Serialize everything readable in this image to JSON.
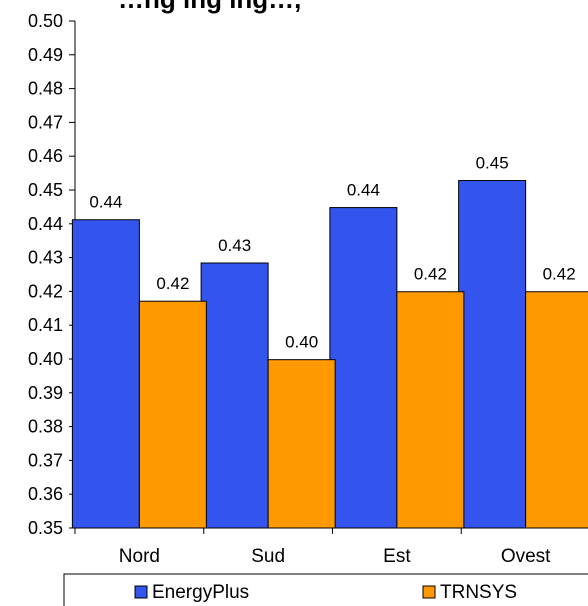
{
  "chart_data": {
    "type": "bar",
    "title": "…ng ing ing…, ",
    "categories": [
      "Nord",
      "Sud",
      "Est",
      "Ovest"
    ],
    "series": [
      {
        "name": "EnergyPlus",
        "color": "#3355ee",
        "values": [
          0.4412,
          0.4284,
          0.4448,
          0.4528
        ],
        "labels": [
          "0.44",
          "0.43",
          "0.44",
          "0.45"
        ]
      },
      {
        "name": "TRNSYS",
        "color": "#ff9900",
        "values": [
          0.4171,
          0.3998,
          0.4199,
          0.4199
        ],
        "labels": [
          "0.42",
          "0.40",
          "0.42",
          "0.42"
        ]
      }
    ],
    "ylim": [
      0.35,
      0.5
    ],
    "yticks": [
      "0.35",
      "0.36",
      "0.37",
      "0.38",
      "0.39",
      "0.40",
      "0.41",
      "0.42",
      "0.43",
      "0.44",
      "0.45",
      "0.46",
      "0.47",
      "0.48",
      "0.49",
      "0.50"
    ],
    "xlabel": "",
    "ylabel": "",
    "grid": false,
    "legend_position": "bottom"
  }
}
